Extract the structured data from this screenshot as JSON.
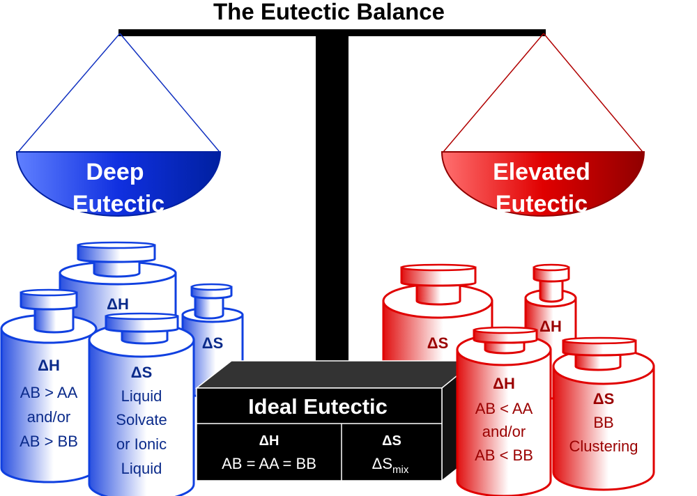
{
  "title": "The Eutectic Balance",
  "colors": {
    "deep": "#1f3fe0",
    "elevated": "#e00000",
    "ideal": "#000000"
  },
  "left_pan": {
    "lines": [
      "Deep",
      "Eutectic"
    ]
  },
  "right_pan": {
    "lines": [
      "Elevated",
      "Eutectic"
    ]
  },
  "deep_weights": {
    "back_large": {
      "label": "ΔH"
    },
    "back_small": {
      "label": "ΔS"
    },
    "front_left": {
      "heading": "ΔH",
      "lines": [
        "AB > AA",
        "and/or",
        "AB > BB"
      ]
    },
    "front_right": {
      "heading": "ΔS",
      "lines": [
        "Liquid",
        "Solvate",
        "or Ionic",
        "Liquid"
      ]
    }
  },
  "elevated_weights": {
    "back_large": {
      "label": "ΔS"
    },
    "back_small": {
      "label": "ΔH"
    },
    "front_left": {
      "heading": "ΔH",
      "lines": [
        "AB < AA",
        "and/or",
        "AB < BB"
      ]
    },
    "front_right": {
      "heading": "ΔS",
      "lines": [
        "BB",
        "Clustering"
      ]
    }
  },
  "ideal_box": {
    "title": "Ideal Eutectic",
    "enthalpy": {
      "heading": "ΔH",
      "value": "AB = AA = BB"
    },
    "entropy": {
      "heading": "ΔS",
      "value_main": "ΔS",
      "value_sub": "mix"
    }
  }
}
